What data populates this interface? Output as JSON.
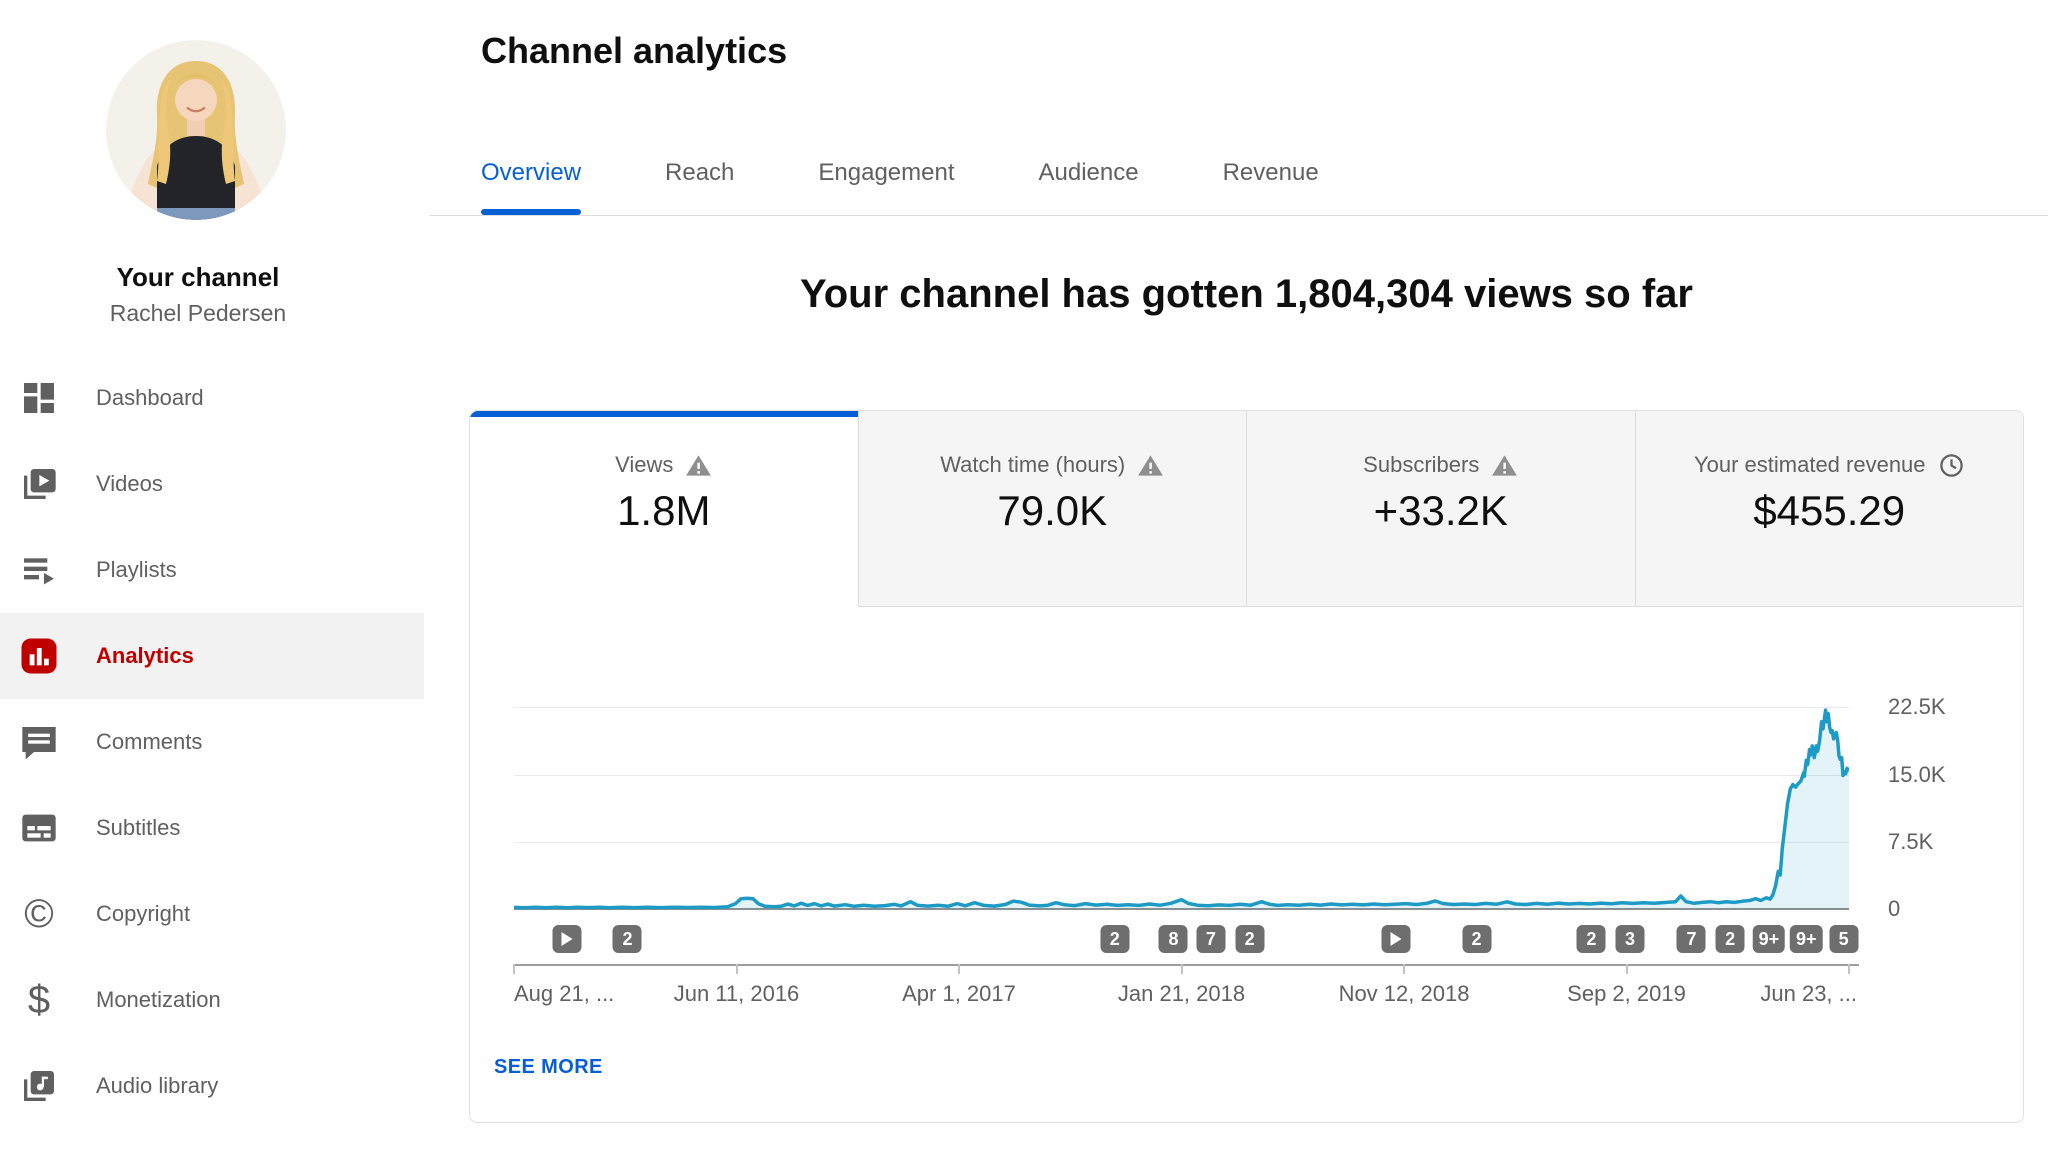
{
  "sidebar": {
    "channel_section_label": "Your channel",
    "channel_name": "Rachel Pedersen",
    "items": [
      {
        "label": "Dashboard",
        "icon": "dashboard",
        "active": false
      },
      {
        "label": "Videos",
        "icon": "videos",
        "active": false
      },
      {
        "label": "Playlists",
        "icon": "playlists",
        "active": false
      },
      {
        "label": "Analytics",
        "icon": "analytics",
        "active": true
      },
      {
        "label": "Comments",
        "icon": "comments",
        "active": false
      },
      {
        "label": "Subtitles",
        "icon": "subtitles",
        "active": false
      },
      {
        "label": "Copyright",
        "icon": "copyright",
        "active": false
      },
      {
        "label": "Monetization",
        "icon": "monetization",
        "active": false
      },
      {
        "label": "Audio library",
        "icon": "audio-library",
        "active": false
      }
    ]
  },
  "header": {
    "title": "Channel analytics",
    "tabs": [
      {
        "label": "Overview",
        "active": true
      },
      {
        "label": "Reach",
        "active": false
      },
      {
        "label": "Engagement",
        "active": false
      },
      {
        "label": "Audience",
        "active": false
      },
      {
        "label": "Revenue",
        "active": false
      }
    ]
  },
  "overview": {
    "headline": "Your channel has gotten 1,804,304 views so far",
    "metrics": [
      {
        "label": "Views",
        "value": "1.8M",
        "icon": "warning",
        "active": true
      },
      {
        "label": "Watch time (hours)",
        "value": "79.0K",
        "icon": "warning",
        "active": false
      },
      {
        "label": "Subscribers",
        "value": "+33.2K",
        "icon": "warning",
        "active": false
      },
      {
        "label": "Your estimated revenue",
        "value": "$455.29",
        "icon": "clock",
        "active": false
      }
    ],
    "see_more_label": "SEE MORE"
  },
  "chart_data": {
    "type": "area",
    "series_name": "Daily views",
    "line_color": "#1d9bc4",
    "fill_color": "rgba(29,155,196,0.12)",
    "ylim": [
      0,
      24500
    ],
    "y_gridlines": [
      22500,
      15000,
      7500,
      0
    ],
    "y_tick_labels": [
      "22.5K",
      "15.0K",
      "7.5K",
      "0"
    ],
    "x_tick_labels": [
      "Aug 21, ...",
      "Jun 11, 2016",
      "Apr 1, 2017",
      "Jan 21, 2018",
      "Nov 12, 2018",
      "Sep 2, 2019",
      "Jun 23, ..."
    ],
    "grid": true,
    "legend": false,
    "points": [
      [
        0,
        180
      ],
      [
        0.008,
        140
      ],
      [
        0.016,
        200
      ],
      [
        0.024,
        150
      ],
      [
        0.032,
        190
      ],
      [
        0.04,
        150
      ],
      [
        0.048,
        200
      ],
      [
        0.056,
        160
      ],
      [
        0.064,
        190
      ],
      [
        0.072,
        150
      ],
      [
        0.08,
        200
      ],
      [
        0.09,
        160
      ],
      [
        0.1,
        190
      ],
      [
        0.11,
        160
      ],
      [
        0.12,
        200
      ],
      [
        0.13,
        170
      ],
      [
        0.14,
        190
      ],
      [
        0.15,
        170
      ],
      [
        0.16,
        260
      ],
      [
        0.166,
        600
      ],
      [
        0.17,
        1150
      ],
      [
        0.175,
        1200
      ],
      [
        0.179,
        1150
      ],
      [
        0.183,
        600
      ],
      [
        0.188,
        300
      ],
      [
        0.195,
        250
      ],
      [
        0.2,
        300
      ],
      [
        0.205,
        550
      ],
      [
        0.21,
        350
      ],
      [
        0.215,
        650
      ],
      [
        0.22,
        400
      ],
      [
        0.225,
        600
      ],
      [
        0.23,
        350
      ],
      [
        0.235,
        550
      ],
      [
        0.24,
        320
      ],
      [
        0.248,
        480
      ],
      [
        0.255,
        300
      ],
      [
        0.262,
        420
      ],
      [
        0.27,
        300
      ],
      [
        0.278,
        380
      ],
      [
        0.285,
        520
      ],
      [
        0.29,
        350
      ],
      [
        0.297,
        820
      ],
      [
        0.302,
        420
      ],
      [
        0.31,
        320
      ],
      [
        0.318,
        420
      ],
      [
        0.325,
        300
      ],
      [
        0.332,
        600
      ],
      [
        0.338,
        360
      ],
      [
        0.345,
        700
      ],
      [
        0.352,
        400
      ],
      [
        0.36,
        320
      ],
      [
        0.368,
        500
      ],
      [
        0.374,
        880
      ],
      [
        0.38,
        760
      ],
      [
        0.386,
        430
      ],
      [
        0.394,
        350
      ],
      [
        0.4,
        420
      ],
      [
        0.406,
        700
      ],
      [
        0.412,
        480
      ],
      [
        0.42,
        380
      ],
      [
        0.428,
        600
      ],
      [
        0.436,
        440
      ],
      [
        0.444,
        520
      ],
      [
        0.452,
        400
      ],
      [
        0.46,
        480
      ],
      [
        0.468,
        400
      ],
      [
        0.476,
        560
      ],
      [
        0.484,
        420
      ],
      [
        0.492,
        640
      ],
      [
        0.5,
        1050
      ],
      [
        0.505,
        620
      ],
      [
        0.512,
        420
      ],
      [
        0.52,
        360
      ],
      [
        0.528,
        460
      ],
      [
        0.536,
        400
      ],
      [
        0.544,
        520
      ],
      [
        0.552,
        420
      ],
      [
        0.56,
        820
      ],
      [
        0.566,
        520
      ],
      [
        0.572,
        400
      ],
      [
        0.58,
        470
      ],
      [
        0.588,
        420
      ],
      [
        0.596,
        540
      ],
      [
        0.604,
        440
      ],
      [
        0.612,
        560
      ],
      [
        0.62,
        460
      ],
      [
        0.628,
        520
      ],
      [
        0.636,
        460
      ],
      [
        0.644,
        560
      ],
      [
        0.652,
        480
      ],
      [
        0.66,
        540
      ],
      [
        0.668,
        600
      ],
      [
        0.676,
        500
      ],
      [
        0.684,
        640
      ],
      [
        0.69,
        900
      ],
      [
        0.696,
        600
      ],
      [
        0.704,
        500
      ],
      [
        0.712,
        560
      ],
      [
        0.72,
        500
      ],
      [
        0.728,
        620
      ],
      [
        0.736,
        540
      ],
      [
        0.744,
        800
      ],
      [
        0.75,
        560
      ],
      [
        0.758,
        500
      ],
      [
        0.766,
        620
      ],
      [
        0.774,
        540
      ],
      [
        0.782,
        660
      ],
      [
        0.79,
        560
      ],
      [
        0.798,
        620
      ],
      [
        0.806,
        560
      ],
      [
        0.814,
        660
      ],
      [
        0.822,
        580
      ],
      [
        0.83,
        700
      ],
      [
        0.838,
        620
      ],
      [
        0.846,
        700
      ],
      [
        0.854,
        640
      ],
      [
        0.862,
        720
      ],
      [
        0.87,
        820
      ],
      [
        0.874,
        1450
      ],
      [
        0.878,
        820
      ],
      [
        0.884,
        640
      ],
      [
        0.89,
        740
      ],
      [
        0.896,
        820
      ],
      [
        0.902,
        700
      ],
      [
        0.908,
        800
      ],
      [
        0.914,
        740
      ],
      [
        0.92,
        860
      ],
      [
        0.926,
        960
      ],
      [
        0.93,
        1150
      ],
      [
        0.934,
        950
      ],
      [
        0.938,
        1250
      ],
      [
        0.941,
        1100
      ],
      [
        0.943,
        1600
      ],
      [
        0.945,
        2600
      ],
      [
        0.947,
        4200
      ],
      [
        0.9485,
        3800
      ],
      [
        0.95,
        6800
      ],
      [
        0.952,
        9200
      ],
      [
        0.954,
        11800
      ],
      [
        0.956,
        13400
      ],
      [
        0.958,
        13900
      ],
      [
        0.96,
        13600
      ],
      [
        0.962,
        14000
      ],
      [
        0.964,
        14300
      ],
      [
        0.966,
        15200
      ],
      [
        0.9665,
        14800
      ],
      [
        0.968,
        16600
      ],
      [
        0.969,
        16100
      ],
      [
        0.9705,
        17800
      ],
      [
        0.9715,
        17200
      ],
      [
        0.9725,
        18200
      ],
      [
        0.974,
        16900
      ],
      [
        0.9755,
        18200
      ],
      [
        0.9765,
        17600
      ],
      [
        0.978,
        18800
      ],
      [
        0.9795,
        20900
      ],
      [
        0.9805,
        20100
      ],
      [
        0.9815,
        21100
      ],
      [
        0.9825,
        22200
      ],
      [
        0.9835,
        20900
      ],
      [
        0.9845,
        21800
      ],
      [
        0.9855,
        20300
      ],
      [
        0.9865,
        19700
      ],
      [
        0.9875,
        19900
      ],
      [
        0.9885,
        19000
      ],
      [
        0.9895,
        19500
      ],
      [
        0.9905,
        19700
      ],
      [
        0.9915,
        18800
      ],
      [
        0.9925,
        17100
      ],
      [
        0.9935,
        16700
      ],
      [
        0.9945,
        16900
      ],
      [
        0.9955,
        14900
      ],
      [
        0.9965,
        15300
      ],
      [
        0.9975,
        15100
      ],
      [
        0.9985,
        15700
      ],
      [
        1,
        15400
      ]
    ],
    "video_markers": [
      {
        "pos": 0.04,
        "type": "play",
        "label": ""
      },
      {
        "pos": 0.085,
        "type": "number",
        "label": "2"
      },
      {
        "pos": 0.45,
        "type": "number",
        "label": "2"
      },
      {
        "pos": 0.494,
        "type": "number",
        "label": "8"
      },
      {
        "pos": 0.522,
        "type": "number",
        "label": "7"
      },
      {
        "pos": 0.551,
        "type": "number",
        "label": "2"
      },
      {
        "pos": 0.661,
        "type": "play",
        "label": ""
      },
      {
        "pos": 0.721,
        "type": "number",
        "label": "2"
      },
      {
        "pos": 0.807,
        "type": "number",
        "label": "2"
      },
      {
        "pos": 0.836,
        "type": "number",
        "label": "3"
      },
      {
        "pos": 0.882,
        "type": "number",
        "label": "7"
      },
      {
        "pos": 0.911,
        "type": "number",
        "label": "2"
      },
      {
        "pos": 0.94,
        "type": "number",
        "label": "9+"
      },
      {
        "pos": 0.968,
        "type": "number",
        "label": "9+"
      },
      {
        "pos": 0.996,
        "type": "number",
        "label": "5"
      }
    ]
  }
}
